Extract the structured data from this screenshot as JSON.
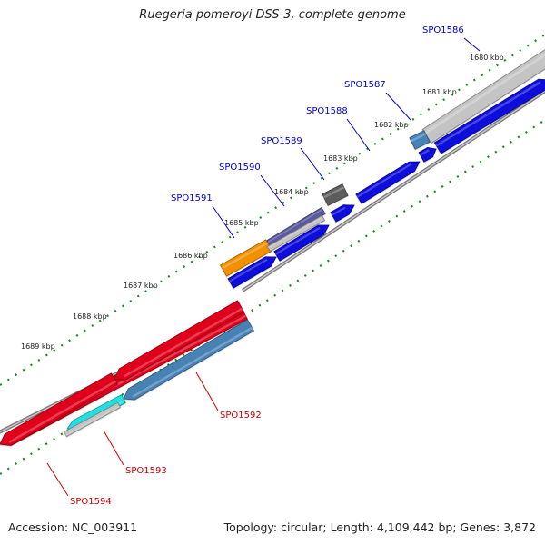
{
  "title": "Ruegeria pomeroyi DSS-3, complete genome",
  "footer": {
    "accession": "Accession: NC_003911",
    "summary": "Topology: circular; Length: 4,109,442 bp; Genes: 3,872"
  },
  "colors": {
    "label_forward": "#0000cc",
    "label_reverse": "#cc0000",
    "tick": "#1a8a1a",
    "backbone": "#7f7f7f",
    "blue": "#0a0adc",
    "red": "#e0001a",
    "steel": "#4682b4",
    "silver": "#c4c4c4",
    "slate": "#5a5aa0",
    "orange": "#f39000",
    "dark_gray": "#5c5c5c",
    "cyan": "#22e0e0"
  },
  "scale_ticks": [
    {
      "label": "1680 kbp",
      "kbp": 1680
    },
    {
      "label": "1681 kbp",
      "kbp": 1681
    },
    {
      "label": "1682 kbp",
      "kbp": 1682
    },
    {
      "label": "1683 kbp",
      "kbp": 1683
    },
    {
      "label": "1684 kbp",
      "kbp": 1684
    },
    {
      "label": "1685 kbp",
      "kbp": 1685
    },
    {
      "label": "1686 kbp",
      "kbp": 1686
    },
    {
      "label": "1687 kbp",
      "kbp": 1687
    },
    {
      "label": "1688 kbp",
      "kbp": 1688
    },
    {
      "label": "1689 kbp",
      "kbp": 1689
    }
  ],
  "labeled_genes": [
    {
      "name": "SPO1586",
      "strand": "forward"
    },
    {
      "name": "SPO1587",
      "strand": "forward"
    },
    {
      "name": "SPO1588",
      "strand": "forward"
    },
    {
      "name": "SPO1589",
      "strand": "forward"
    },
    {
      "name": "SPO1590",
      "strand": "forward"
    },
    {
      "name": "SPO1591",
      "strand": "forward"
    },
    {
      "name": "SPO1592",
      "strand": "reverse"
    },
    {
      "name": "SPO1593",
      "strand": "reverse"
    },
    {
      "name": "SPO1594",
      "strand": "reverse"
    }
  ]
}
